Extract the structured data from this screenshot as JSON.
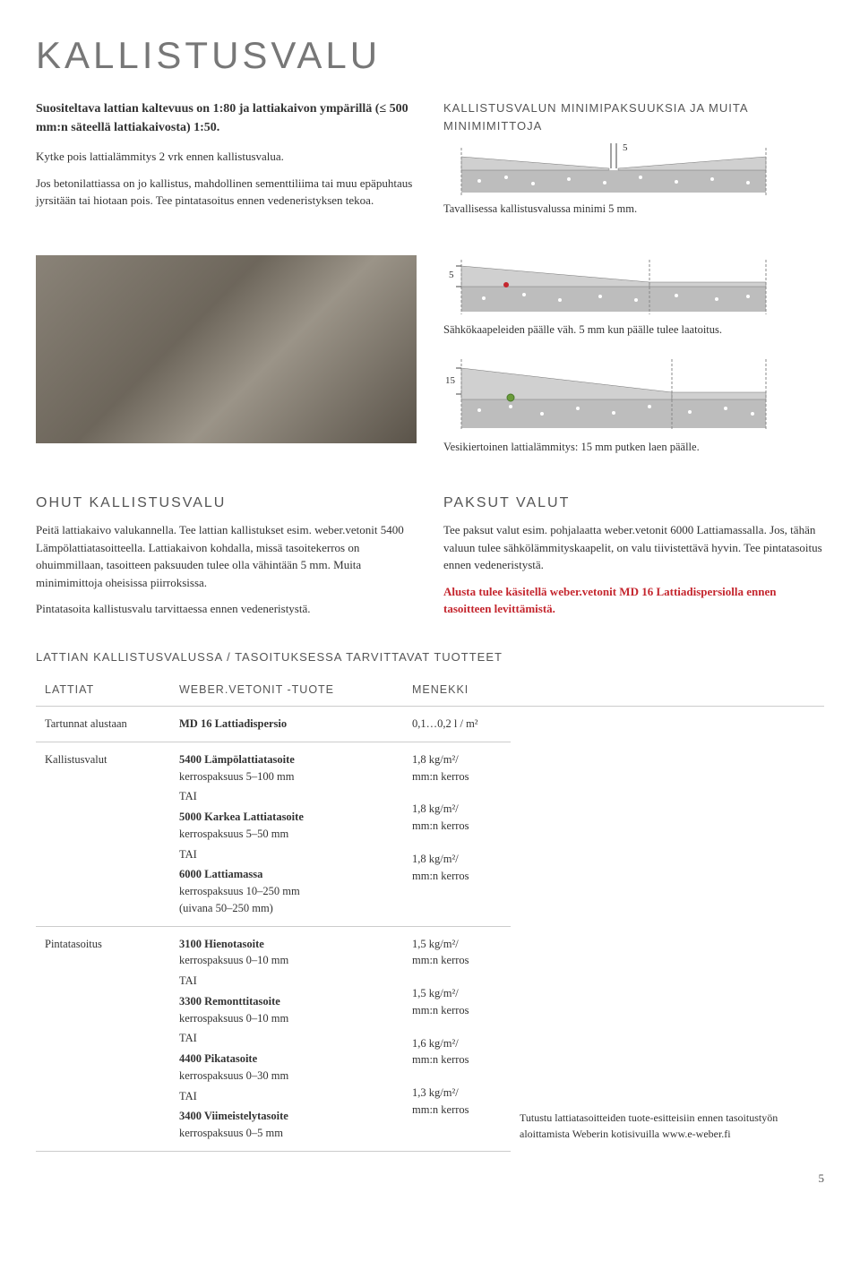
{
  "page_title": "KALLISTUSVALU",
  "intro_bold": "Suositeltava lattian kaltevuus on 1:80 ja lattiakaivon ympärillä (≤ 500 mm:n säteellä lattiakaivosta) 1:50.",
  "intro_p1": "Kytke pois lattialämmitys 2 vrk ennen kallistusvalua.",
  "intro_p2": "Jos betonilattiassa on jo kallistus, mahdollinen sementtiliima tai muu epäpuhtaus jyrsitään tai hiotaan pois. Tee pintatasoitus ennen vedeneristyksen tekoa.",
  "right_heading": "KALLISTUSVALUN MINIMIPAKSUUKSIA JA MUITA MINIMIMITTOJA",
  "diagrams": [
    {
      "label": "5",
      "caption": "Tavallisessa kallistusvalussa minimi 5 mm."
    },
    {
      "label": "5",
      "caption": "Sähkökaapeleiden päälle väh. 5 mm kun päälle tulee laatoitus."
    },
    {
      "label": "15",
      "caption": "Vesikiertoinen lattialämmitys: 15 mm putken laen päälle."
    }
  ],
  "ohut": {
    "title": "OHUT KALLISTUSVALU",
    "p1": "Peitä lattiakaivo valukannella. Tee lattian kallistukset esim. weber.vetonit 5400 Lämpölattiatasoitteella. Lattiakaivon kohdalla, missä tasoitekerros on ohuimmillaan, tasoitteen paksuuden tulee olla vähintään 5 mm. Muita minimimittoja oheisissa piirroksissa.",
    "p2": "Pintatasoita kallistusvalu tarvittaessa ennen vedeneristystä."
  },
  "paksut": {
    "title": "PAKSUT VALUT",
    "p1": "Tee paksut valut esim. pohjalaatta weber.vetonit 6000 Lattiamassalla. Jos, tähän valuun tulee sähkölämmityskaapelit, on valu tiivistettävä hyvin. Tee pintatasoitus ennen vedeneristystä.",
    "p2": "Alusta tulee käsitellä weber.vetonit MD 16 Lattiadispersiolla ennen tasoitteen levittämistä."
  },
  "table_heading": "LATTIAN KALLISTUSVALUSSA / TASOITUKSESSA TARVITTAVAT TUOTTEET",
  "table": {
    "headers": [
      "LATTIAT",
      "WEBER.VETONIT -TUOTE",
      "MENEKKI"
    ],
    "tai": "TAI",
    "rows": [
      {
        "label": "Tartunnat alustaan",
        "products": [
          {
            "name": "MD 16 Lattiadispersio",
            "detail": ""
          }
        ],
        "consumption": [
          "0,1…0,2 l / m²"
        ]
      },
      {
        "label": "Kallistusvalut",
        "products": [
          {
            "name": "5400 Lämpölattiatasoite",
            "detail": "kerrospaksuus 5–100 mm"
          },
          {
            "name": "5000 Karkea Lattiatasoite",
            "detail": "kerrospaksuus 5–50 mm"
          },
          {
            "name": "6000 Lattiamassa",
            "detail": "kerrospaksuus 10–250 mm\n(uivana 50–250 mm)"
          }
        ],
        "consumption": [
          "1,8 kg/m²/\nmm:n kerros",
          "1,8 kg/m²/\nmm:n kerros",
          "1,8 kg/m²/\nmm:n kerros"
        ]
      },
      {
        "label": "Pintatasoitus",
        "products": [
          {
            "name": "3100 Hienotasoite",
            "detail": "kerrospaksuus 0–10 mm"
          },
          {
            "name": "3300 Remonttitasoite",
            "detail": "kerrospaksuus 0–10 mm"
          },
          {
            "name": "4400 Pikatasoite",
            "detail": "kerrospaksuus 0–30 mm"
          },
          {
            "name": "3400 Viimeistelytasoite",
            "detail": "kerrospaksuus 0–5 mm"
          }
        ],
        "consumption": [
          "1,5 kg/m²/\nmm:n kerros",
          "1,5 kg/m²/\nmm:n kerros",
          "1,6 kg/m²/\nmm:n kerros",
          "1,3 kg/m²/\nmm:n kerros"
        ]
      }
    ],
    "note": "Tutustu lattiatasoitteiden tuote-esitteisiin ennen tasoitustyön aloittamista Weberin kotisivuilla www.e-weber.fi"
  },
  "page_number": "5",
  "colors": {
    "heading": "#777777",
    "text": "#333333",
    "red": "#c4262e",
    "diagram_fill": "#c8c8c8",
    "diagram_base": "#a8a8a8",
    "diagram_line": "#666666"
  }
}
